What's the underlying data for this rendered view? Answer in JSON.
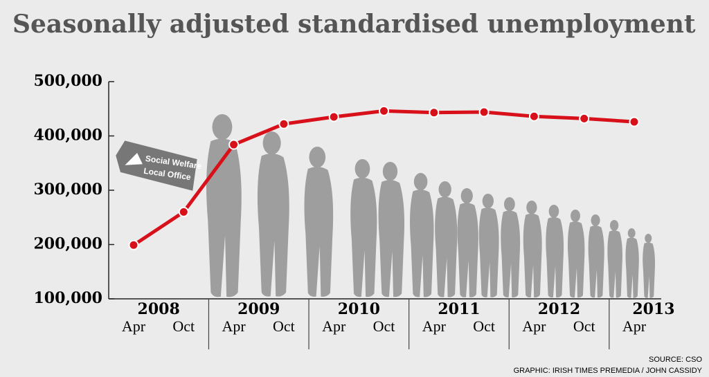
{
  "chart_data": {
    "type": "line",
    "title": "Seasonally adjusted standardised unemployment",
    "categories": [
      "Apr",
      "Oct",
      "Apr",
      "Oct",
      "Apr",
      "Oct",
      "Apr",
      "Oct",
      "Apr",
      "Oct",
      "Apr"
    ],
    "years": [
      "2008",
      "2009",
      "2010",
      "2011",
      "2012",
      "2013"
    ],
    "values": [
      199000,
      260000,
      384000,
      422000,
      435000,
      446000,
      443000,
      444000,
      436000,
      432000,
      426000
    ],
    "color": "#d7101a",
    "ylim": [
      100000,
      500000
    ],
    "yticks": [
      {
        "value": 100000,
        "label": "100,000"
      },
      {
        "value": 200000,
        "label": "200,000"
      },
      {
        "value": 300000,
        "label": "300,000"
      },
      {
        "value": 400000,
        "label": "400,000"
      },
      {
        "value": 500000,
        "label": "500,000"
      }
    ],
    "sign_text": [
      "Social Welfare",
      "Local Office"
    ],
    "source": "SOURCE: CSO",
    "credit": "GRAPHIC: IRISH TIMES PREMEDIA / JOHN CASSIDY"
  }
}
